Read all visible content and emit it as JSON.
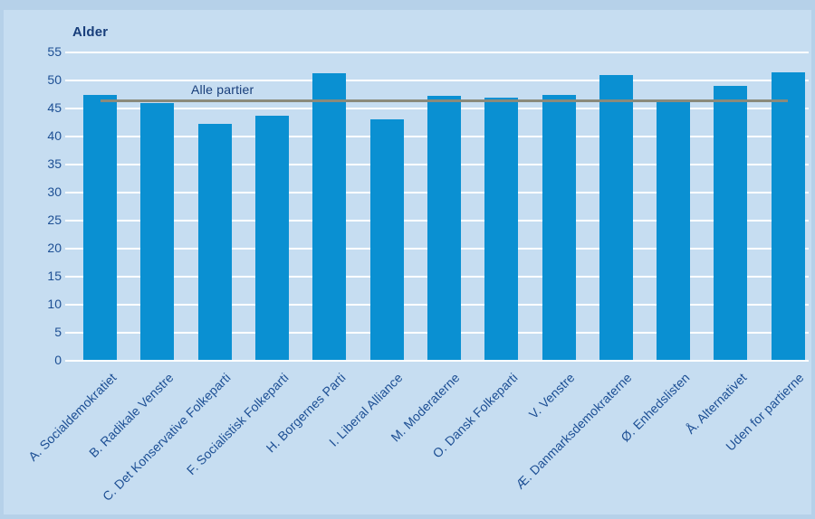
{
  "chart_data": {
    "type": "bar",
    "title": "",
    "ylabel": "Alder",
    "xlabel": "",
    "categories": [
      "A. Socialdemokratiet",
      "B. Radikale Venstre",
      "C. Det Konservative Folkeparti",
      "F. Socialistisk Folkeparti",
      "H. Borgernes Parti",
      "I. Liberal Alliance",
      "M. Moderaterne",
      "O. Dansk Folkeparti",
      "V. Venstre",
      "Æ. Danmarksdemokraterne",
      "Ø. Enhedslisten",
      "Å. Alternativet",
      "Uden for partierne"
    ],
    "values": [
      47.5,
      46.0,
      42.2,
      43.7,
      51.3,
      43.0,
      47.3,
      46.9,
      47.4,
      51.0,
      46.3,
      49.0,
      51.5
    ],
    "ylim": [
      0,
      55
    ],
    "yticks": [
      0,
      5,
      10,
      15,
      20,
      25,
      30,
      35,
      40,
      45,
      50,
      55
    ],
    "grid": true,
    "legend_position": "none",
    "reference_line": {
      "label": "Alle partier",
      "value": 46.4
    }
  },
  "colors": {
    "background": "#c6ddf1",
    "frame": "#b6d1e9",
    "bar": "#0a90d2",
    "gridline": "#ffffff",
    "tick_text": "#1d4f94",
    "title_text": "#173d7a",
    "reference_line": "#8a8a7b",
    "reference_label_text": "#173d7a"
  }
}
